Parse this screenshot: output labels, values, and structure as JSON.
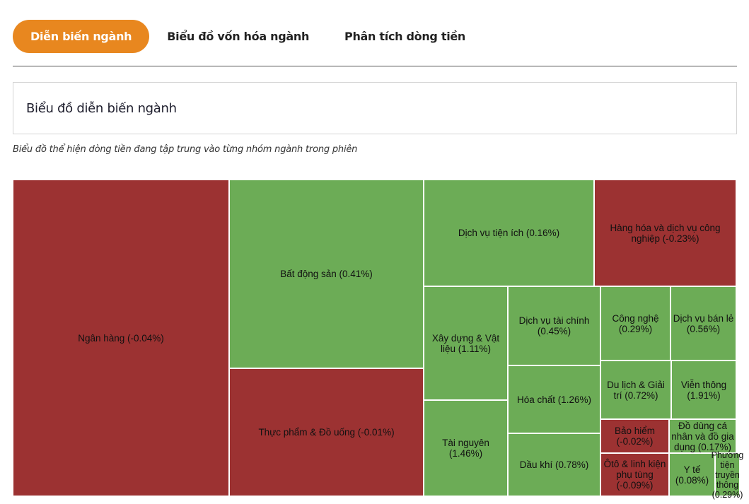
{
  "tabs": [
    {
      "label": "Diễn biến ngành",
      "active": true
    },
    {
      "label": "Biểu đồ vốn hóa ngành",
      "active": false
    },
    {
      "label": "Phân tích dòng tiền",
      "active": false
    }
  ],
  "section_title": "Biểu đồ diễn biến ngành",
  "subtitle": "Biểu đồ thể hiện dòng tiền đang tập trung vào từng nhóm ngành trong phiên",
  "colors": {
    "accent": "#e8871f",
    "positive": "#6cac56",
    "negative": "#9c3232"
  },
  "chart_data": {
    "type": "treemap",
    "title": "",
    "items": [
      {
        "name": "Ngân hàng",
        "change_pct": -0.04,
        "label": "Ngân hàng (-0.04%)"
      },
      {
        "name": "Bất động sản",
        "change_pct": 0.41,
        "label": "Bất động sản (0.41%)"
      },
      {
        "name": "Thực phẩm & Đồ uống",
        "change_pct": -0.01,
        "label": "Thực phẩm & Đồ uống (-0.01%)"
      },
      {
        "name": "Dịch vụ tiện ích",
        "change_pct": 0.16,
        "label": "Dịch vụ tiện ích (0.16%)"
      },
      {
        "name": "Hàng hóa và dịch vụ công nghiệp",
        "change_pct": -0.23,
        "label": "Hàng hóa và dịch vụ công nghiệp (-0.23%)"
      },
      {
        "name": "Xây dựng & Vật liệu",
        "change_pct": 1.11,
        "label": "Xây dựng & Vật liệu (1.11%)"
      },
      {
        "name": "Tài nguyên",
        "change_pct": 1.46,
        "label": "Tài nguyên (1.46%)"
      },
      {
        "name": "Dịch vụ tài chính",
        "change_pct": 0.45,
        "label": "Dịch vụ tài chính (0.45%)"
      },
      {
        "name": "Hóa chất",
        "change_pct": 1.26,
        "label": "Hóa chất (1.26%)"
      },
      {
        "name": "Dầu khí",
        "change_pct": 0.78,
        "label": "Dầu khí (0.78%)"
      },
      {
        "name": "Công nghệ",
        "change_pct": 0.29,
        "label": "Công nghệ (0.29%)"
      },
      {
        "name": "Dịch vụ bán lẻ",
        "change_pct": 0.56,
        "label": "Dịch vụ bán lẻ (0.56%)"
      },
      {
        "name": "Du lịch & Giải trí",
        "change_pct": 0.72,
        "label": "Du lịch & Giải trí (0.72%)"
      },
      {
        "name": "Viễn thông",
        "change_pct": 1.91,
        "label": "Viễn thông (1.91%)"
      },
      {
        "name": "Bảo hiểm",
        "change_pct": -0.02,
        "label": "Bảo hiểm (-0.02%)"
      },
      {
        "name": "Đồ dùng cá nhân và đồ gia dụng",
        "change_pct": 0.17,
        "label": "Đồ dùng cá nhân và đồ gia dụng (0.17%)"
      },
      {
        "name": "Ôtô & linh kiện phụ tùng",
        "change_pct": -0.09,
        "label": "Ôtô & linh kiện phụ tùng (-0.09%)"
      },
      {
        "name": "Y tế",
        "change_pct": 0.08,
        "label": "Y tế (0.08%)"
      },
      {
        "name": "Phương tiện truyền thông",
        "change_pct": 0.29,
        "label": "Phương tiện truyền thông (0.29%)"
      }
    ]
  }
}
